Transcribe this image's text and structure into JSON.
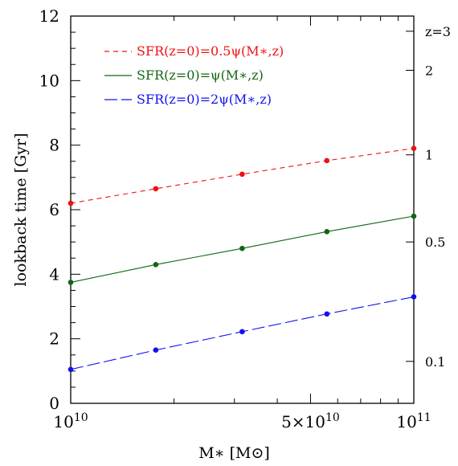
{
  "chart_data": {
    "type": "line",
    "xlabel": "M∗ [M⊙]",
    "ylabel": "lookback time [Gyr]",
    "xscale": "log",
    "xlim": [
      10000000000.0,
      100000000000.0
    ],
    "ylim": [
      0,
      12
    ],
    "x": [
      10000000000.0,
      17700000000.0,
      31600000000.0,
      55800000000.0,
      100000000000.0
    ],
    "x_tick_labels": [
      {
        "value": 10000000000.0,
        "base": "10",
        "exp": "10"
      },
      {
        "value": 50000000000.0,
        "base": "5×10",
        "exp": "10"
      },
      {
        "value": 100000000000.0,
        "base": "10",
        "exp": "11"
      }
    ],
    "y_ticks": [
      0,
      2,
      4,
      6,
      8,
      10,
      12
    ],
    "y_tick_labels": [
      "0",
      "2",
      "4",
      "6",
      "8",
      "10",
      "12"
    ],
    "right_axis": {
      "label": "z",
      "ticks": [
        {
          "label": "z=3",
          "lookback": 11.53
        },
        {
          "label": "2",
          "lookback": 10.32
        },
        {
          "label": "1",
          "lookback": 7.7
        },
        {
          "label": "0.5",
          "lookback": 5.0
        },
        {
          "label": "0.1",
          "lookback": 1.3
        }
      ]
    },
    "grid": false,
    "legend_position": "top-left",
    "series": [
      {
        "name": "SFR(z=0)=0.5ψ(M∗,z)",
        "color": "#ee1111",
        "dash": "6,5",
        "values": [
          6.2,
          6.65,
          7.1,
          7.52,
          7.9
        ]
      },
      {
        "name": "SFR(z=0)=ψ(M∗,z)",
        "color": "#116611",
        "dash": "",
        "values": [
          3.75,
          4.3,
          4.8,
          5.32,
          5.8
        ]
      },
      {
        "name": "SFR(z=0)=2ψ(M∗,z)",
        "color": "#1111ee",
        "dash": "16,5",
        "values": [
          1.05,
          1.65,
          2.22,
          2.77,
          3.3
        ]
      }
    ]
  }
}
